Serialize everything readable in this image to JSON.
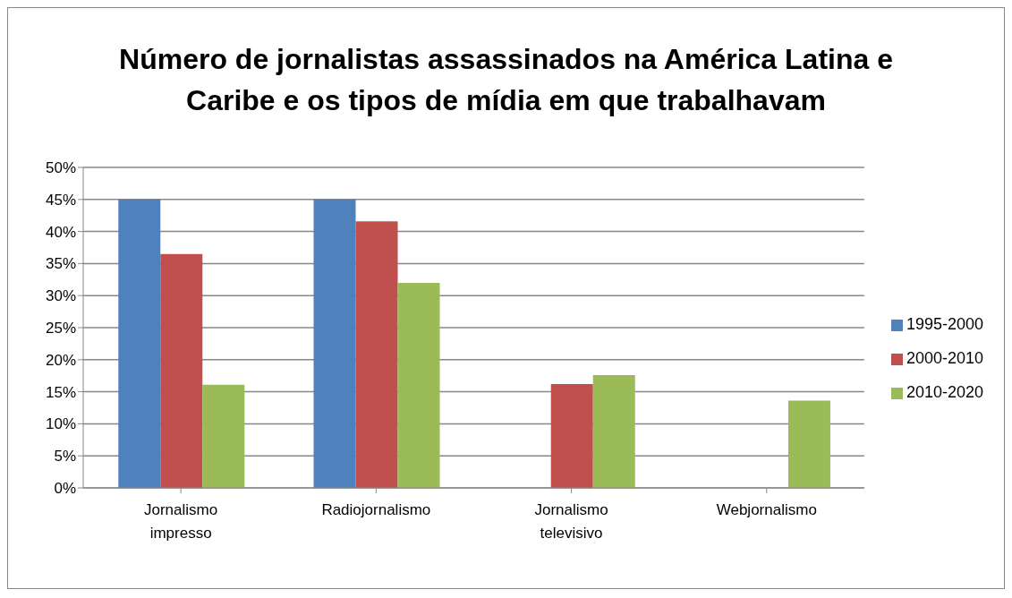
{
  "chart_data": {
    "type": "bar",
    "title": "Número de jornalistas  assassinados  na América Latina e Caribe e os tipos de mídia em que trabalhavam",
    "categories": [
      "Jornalismo impresso",
      "Radiojornalismo",
      "Jornalismo televisivo",
      "Webjornalismo"
    ],
    "series": [
      {
        "name": "1995-2000",
        "color": "#4f81bd",
        "values": [
          45,
          45,
          0,
          0
        ]
      },
      {
        "name": "2000-2010",
        "color": "#c0504d",
        "values": [
          36.5,
          41.6,
          16.2,
          0
        ]
      },
      {
        "name": "2010-2020",
        "color": "#9bbb59",
        "values": [
          16.1,
          32.0,
          17.6,
          13.6
        ]
      }
    ],
    "ylim": [
      0,
      50
    ],
    "yticks": [
      {
        "value": 0,
        "label": "0%"
      },
      {
        "value": 5,
        "label": "5%"
      },
      {
        "value": 10,
        "label": "10%"
      },
      {
        "value": 15,
        "label": "15%"
      },
      {
        "value": 20,
        "label": "20%"
      },
      {
        "value": 25,
        "label": "25%"
      },
      {
        "value": 30,
        "label": "30%"
      },
      {
        "value": 35,
        "label": "35%"
      },
      {
        "value": 40,
        "label": "40%"
      },
      {
        "value": 45,
        "label": "45%"
      },
      {
        "value": 50,
        "label": "50%"
      }
    ],
    "grid": "y",
    "legend": "right"
  }
}
